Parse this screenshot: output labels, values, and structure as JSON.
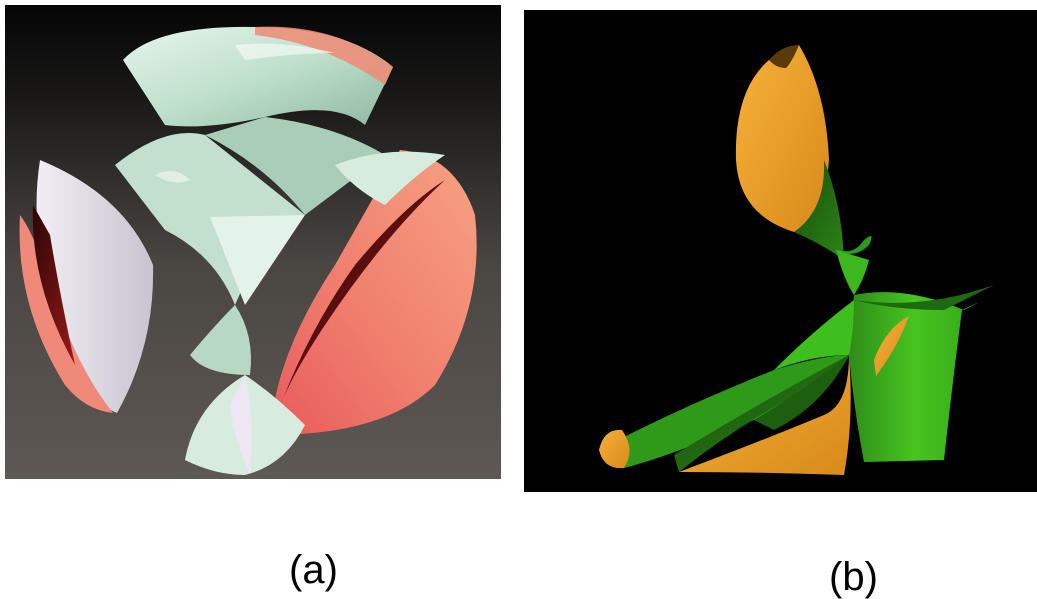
{
  "figure": {
    "panels": [
      {
        "caption": "(a)",
        "background_colors": [
          "#0a0a0a",
          "#5a5550"
        ],
        "surface_colors": [
          "#cfe7d8",
          "#f0826e",
          "#8a0f12",
          "#e8e2ea"
        ]
      },
      {
        "caption": "(b)",
        "background_colors": [
          "#000000"
        ],
        "surface_colors": [
          "#3fbf1e",
          "#1f6e12",
          "#f0a020"
        ]
      }
    ]
  }
}
